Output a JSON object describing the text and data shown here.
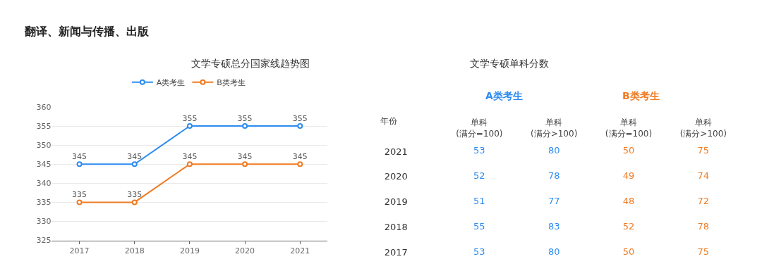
{
  "chart_data": [
    {
      "type": "line",
      "title": "文学专硕总分国家线趋势图",
      "annotations": [
        "翻译、新闻与传播、出版"
      ],
      "categories": [
        "2017",
        "2018",
        "2019",
        "2020",
        "2021"
      ],
      "series": [
        {
          "name": "A类考生",
          "color": "#2d8cf0",
          "values": [
            345,
            345,
            355,
            355,
            355
          ]
        },
        {
          "name": "B类考生",
          "color": "#f07b22",
          "values": [
            335,
            335,
            345,
            345,
            345
          ]
        }
      ],
      "ylim": [
        325,
        360
      ],
      "yticks": [
        325,
        330,
        335,
        340,
        345,
        350,
        355,
        360
      ],
      "grid": "y",
      "legend": "top",
      "marker": "circle",
      "line_style": "solid",
      "data_labels": true
    },
    {
      "type": "heatmap",
      "title": "文学专硕单科分数",
      "annotations": [
        "A类考生",
        "B类考生"
      ],
      "ylabel": "年份",
      "categories": [
        "单科\n(满分=100)",
        "单科\n(满分>100)",
        "单科\n(满分=100)",
        "单科\n(满分>100)"
      ],
      "colors": [
        "#2d8cf0",
        "#2d8cf0",
        "#f07b22",
        "#f07b22"
      ],
      "data_labels": true,
      "y_categories": [
        "2021",
        "2020",
        "2019",
        "2018",
        "2017"
      ],
      "cells": [
        [
          53,
          80,
          50,
          75
        ],
        [
          52,
          78,
          49,
          74
        ],
        [
          51,
          77,
          48,
          72
        ],
        [
          55,
          83,
          52,
          78
        ],
        [
          53,
          80,
          50,
          75
        ]
      ]
    }
  ]
}
